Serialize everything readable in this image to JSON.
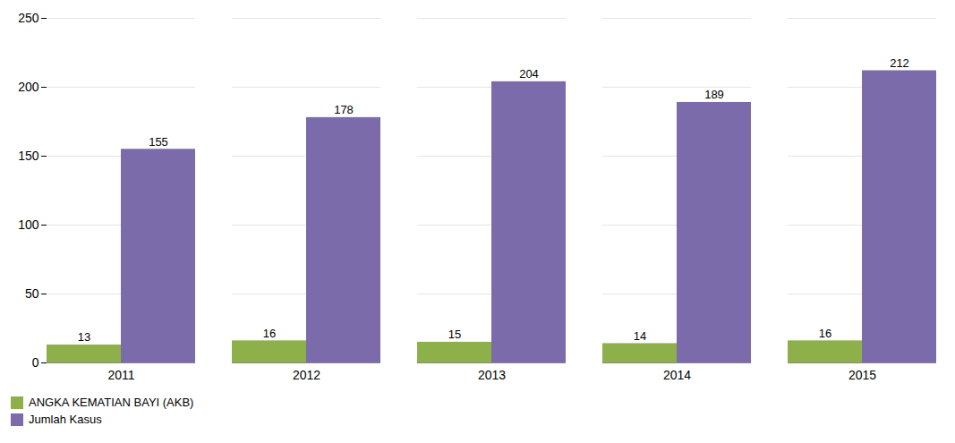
{
  "chart_data": {
    "type": "bar",
    "categories": [
      "2011",
      "2012",
      "2013",
      "2014",
      "2015"
    ],
    "series": [
      {
        "name": "ANGKA KEMATIAN BAYI (AKB)",
        "color": "#8db04a",
        "values": [
          13,
          16,
          15,
          14,
          16
        ]
      },
      {
        "name": "Jumlah Kasus",
        "color": "#7b6baa",
        "values": [
          155,
          178,
          204,
          189,
          212
        ]
      }
    ],
    "ylim": [
      0,
      250
    ],
    "yticks": [
      0,
      50,
      100,
      150,
      200,
      250
    ],
    "grid": true,
    "legend": "lower left",
    "data_labels": true
  }
}
